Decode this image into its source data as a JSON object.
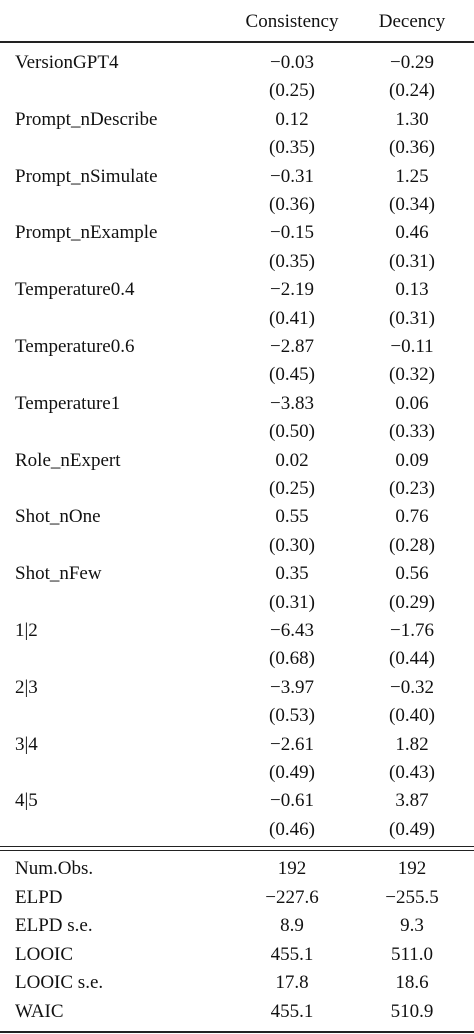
{
  "table": {
    "columns": [
      "Consistency",
      "Decency"
    ],
    "rows": [
      {
        "label": "VersionGPT4",
        "estimates": [
          "−0.03",
          "−0.29"
        ],
        "se": [
          "(0.25)",
          "(0.24)"
        ]
      },
      {
        "label": "Prompt_nDescribe",
        "estimates": [
          "0.12",
          "1.30"
        ],
        "se": [
          "(0.35)",
          "(0.36)"
        ]
      },
      {
        "label": "Prompt_nSimulate",
        "estimates": [
          "−0.31",
          "1.25"
        ],
        "se": [
          "(0.36)",
          "(0.34)"
        ]
      },
      {
        "label": "Prompt_nExample",
        "estimates": [
          "−0.15",
          "0.46"
        ],
        "se": [
          "(0.35)",
          "(0.31)"
        ]
      },
      {
        "label": "Temperature0.4",
        "estimates": [
          "−2.19",
          "0.13"
        ],
        "se": [
          "(0.41)",
          "(0.31)"
        ]
      },
      {
        "label": "Temperature0.6",
        "estimates": [
          "−2.87",
          "−0.11"
        ],
        "se": [
          "(0.45)",
          "(0.32)"
        ]
      },
      {
        "label": "Temperature1",
        "estimates": [
          "−3.83",
          "0.06"
        ],
        "se": [
          "(0.50)",
          "(0.33)"
        ]
      },
      {
        "label": "Role_nExpert",
        "estimates": [
          "0.02",
          "0.09"
        ],
        "se": [
          "(0.25)",
          "(0.23)"
        ]
      },
      {
        "label": "Shot_nOne",
        "estimates": [
          "0.55",
          "0.76"
        ],
        "se": [
          "(0.30)",
          "(0.28)"
        ]
      },
      {
        "label": "Shot_nFew",
        "estimates": [
          "0.35",
          "0.56"
        ],
        "se": [
          "(0.31)",
          "(0.29)"
        ]
      },
      {
        "label": "1|2",
        "estimates": [
          "−6.43",
          "−1.76"
        ],
        "se": [
          "(0.68)",
          "(0.44)"
        ]
      },
      {
        "label": "2|3",
        "estimates": [
          "−3.97",
          "−0.32"
        ],
        "se": [
          "(0.53)",
          "(0.40)"
        ]
      },
      {
        "label": "3|4",
        "estimates": [
          "−2.61",
          "1.82"
        ],
        "se": [
          "(0.49)",
          "(0.43)"
        ]
      },
      {
        "label": "4|5",
        "estimates": [
          "−0.61",
          "3.87"
        ],
        "se": [
          "(0.46)",
          "(0.49)"
        ]
      }
    ],
    "stats": [
      {
        "label": "Num.Obs.",
        "values": [
          "192",
          "192"
        ]
      },
      {
        "label": "ELPD",
        "values": [
          "−227.6",
          "−255.5"
        ]
      },
      {
        "label": "ELPD s.e.",
        "values": [
          "8.9",
          "9.3"
        ]
      },
      {
        "label": "LOOIC",
        "values": [
          "455.1",
          "511.0"
        ]
      },
      {
        "label": "LOOIC s.e.",
        "values": [
          "17.8",
          "18.6"
        ]
      },
      {
        "label": "WAIC",
        "values": [
          "455.1",
          "510.9"
        ]
      }
    ]
  }
}
